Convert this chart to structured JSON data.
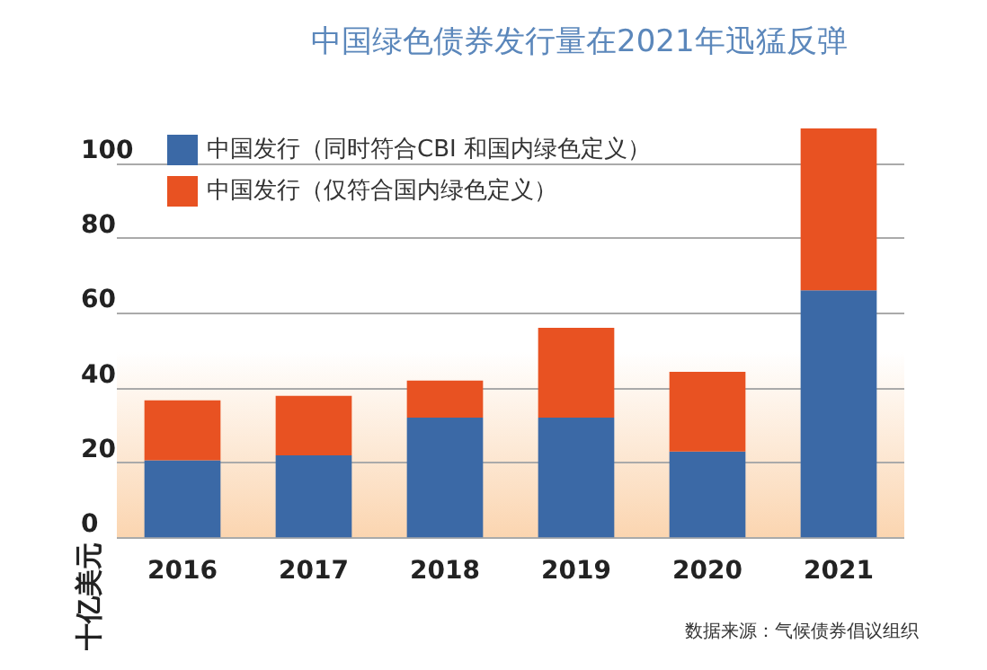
{
  "chart_data": {
    "type": "bar",
    "stacked": true,
    "title": "中国绿色债券发行量在2021年迅猛反弹",
    "ylabel": "十亿美元",
    "categories": [
      "2016",
      "2017",
      "2018",
      "2019",
      "2020",
      "2021"
    ],
    "series": [
      {
        "name": "中国发行（同时符合CBI 和国内绿色定义）",
        "color": "#3b69a6",
        "values": [
          20.6,
          21.9,
          32.0,
          32.0,
          22.9,
          66.0
        ]
      },
      {
        "name": "中国发行（仅符合国内绿色定义）",
        "color": "#e85222",
        "values": [
          16.0,
          15.9,
          9.9,
          24.0,
          21.3,
          43.3
        ]
      }
    ],
    "ylim": [
      0,
      110
    ],
    "yticks": [
      0,
      20,
      40,
      60,
      80,
      100
    ],
    "grid": "y",
    "legend": "top left",
    "annotations": [
      "数据来源：气候债券倡议组织"
    ]
  }
}
